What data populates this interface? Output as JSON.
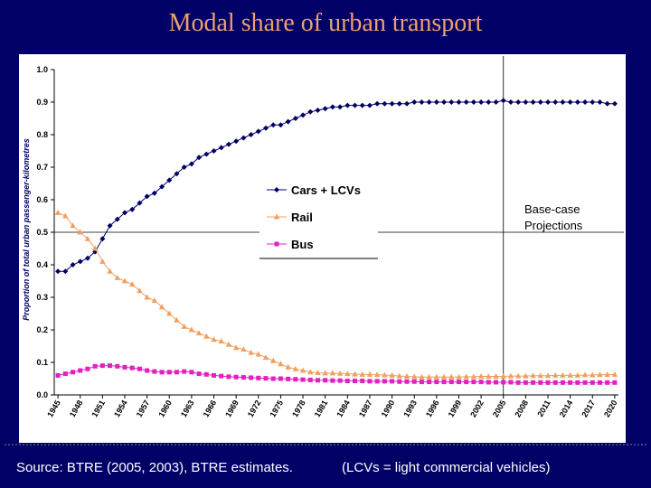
{
  "chart_data": {
    "type": "line",
    "title": "Modal share of urban transport",
    "y_label": "Proportion of total urban passenger-kilometres",
    "x": [
      1945,
      1946,
      1947,
      1948,
      1949,
      1950,
      1951,
      1952,
      1953,
      1954,
      1955,
      1956,
      1957,
      1958,
      1959,
      1960,
      1961,
      1962,
      1963,
      1964,
      1965,
      1966,
      1967,
      1968,
      1969,
      1970,
      1971,
      1972,
      1973,
      1974,
      1975,
      1976,
      1977,
      1978,
      1979,
      1980,
      1981,
      1982,
      1983,
      1984,
      1985,
      1986,
      1987,
      1988,
      1989,
      1990,
      1991,
      1992,
      1993,
      1994,
      1995,
      1996,
      1997,
      1998,
      1999,
      2000,
      2001,
      2002,
      2003,
      2004,
      2005,
      2006,
      2007,
      2008,
      2009,
      2010,
      2011,
      2012,
      2013,
      2014,
      2015,
      2016,
      2017,
      2018,
      2019,
      2020
    ],
    "series": [
      {
        "name": "Cars + LCVs",
        "color": "#000066",
        "marker": "diamond",
        "values": [
          0.38,
          0.38,
          0.4,
          0.41,
          0.42,
          0.44,
          0.48,
          0.52,
          0.54,
          0.56,
          0.57,
          0.59,
          0.61,
          0.62,
          0.64,
          0.66,
          0.68,
          0.7,
          0.71,
          0.73,
          0.74,
          0.75,
          0.76,
          0.77,
          0.78,
          0.79,
          0.8,
          0.81,
          0.82,
          0.83,
          0.83,
          0.84,
          0.85,
          0.86,
          0.87,
          0.875,
          0.88,
          0.885,
          0.885,
          0.89,
          0.89,
          0.89,
          0.89,
          0.895,
          0.895,
          0.895,
          0.895,
          0.895,
          0.9,
          0.9,
          0.9,
          0.9,
          0.9,
          0.9,
          0.9,
          0.9,
          0.9,
          0.9,
          0.9,
          0.9,
          0.905,
          0.9,
          0.9,
          0.9,
          0.9,
          0.9,
          0.9,
          0.9,
          0.9,
          0.9,
          0.9,
          0.9,
          0.9,
          0.9,
          0.895,
          0.895
        ]
      },
      {
        "name": "Rail",
        "color": "#f0a060",
        "marker": "triangle",
        "values": [
          0.56,
          0.55,
          0.52,
          0.5,
          0.48,
          0.45,
          0.41,
          0.38,
          0.36,
          0.35,
          0.34,
          0.32,
          0.3,
          0.29,
          0.27,
          0.25,
          0.23,
          0.21,
          0.2,
          0.19,
          0.18,
          0.17,
          0.165,
          0.155,
          0.145,
          0.14,
          0.13,
          0.125,
          0.115,
          0.105,
          0.095,
          0.085,
          0.08,
          0.075,
          0.07,
          0.068,
          0.067,
          0.067,
          0.066,
          0.065,
          0.064,
          0.063,
          0.063,
          0.062,
          0.061,
          0.06,
          0.058,
          0.057,
          0.056,
          0.055,
          0.055,
          0.055,
          0.055,
          0.055,
          0.055,
          0.056,
          0.056,
          0.057,
          0.057,
          0.057,
          0.057,
          0.058,
          0.058,
          0.058,
          0.059,
          0.059,
          0.059,
          0.06,
          0.06,
          0.06,
          0.06,
          0.061,
          0.061,
          0.062,
          0.062,
          0.063
        ]
      },
      {
        "name": "Bus",
        "color": "#e020c0",
        "marker": "square",
        "values": [
          0.06,
          0.065,
          0.07,
          0.075,
          0.08,
          0.088,
          0.09,
          0.09,
          0.088,
          0.085,
          0.083,
          0.08,
          0.075,
          0.072,
          0.07,
          0.07,
          0.07,
          0.072,
          0.07,
          0.065,
          0.063,
          0.06,
          0.058,
          0.056,
          0.055,
          0.054,
          0.053,
          0.052,
          0.051,
          0.05,
          0.05,
          0.049,
          0.048,
          0.047,
          0.046,
          0.045,
          0.045,
          0.044,
          0.044,
          0.043,
          0.043,
          0.043,
          0.042,
          0.042,
          0.042,
          0.042,
          0.041,
          0.041,
          0.041,
          0.04,
          0.04,
          0.04,
          0.04,
          0.04,
          0.04,
          0.04,
          0.04,
          0.04,
          0.039,
          0.039,
          0.039,
          0.039,
          0.038,
          0.038,
          0.038,
          0.038,
          0.038,
          0.038,
          0.038,
          0.038,
          0.038,
          0.038,
          0.038,
          0.038,
          0.038,
          0.038
        ]
      }
    ],
    "xlim": [
      1944.5,
      2020.5
    ],
    "xticks": [
      1945,
      1948,
      1951,
      1954,
      1957,
      1960,
      1963,
      1966,
      1969,
      1972,
      1975,
      1978,
      1981,
      1984,
      1987,
      1990,
      1993,
      1996,
      1999,
      2002,
      2005,
      2008,
      2011,
      2014,
      2017,
      2020
    ],
    "ylim": [
      0,
      1
    ],
    "yticks": [
      {
        "value": 0,
        "label": "0.0"
      },
      0.1,
      0.2,
      0.3,
      0.4,
      0.5,
      0.6,
      0.7,
      0.8,
      0.9,
      {
        "value": 1,
        "label": "1.0"
      }
    ],
    "reference_y": 0.5,
    "projection_start": 2005,
    "annotation": [
      "Base-case",
      "Projections"
    ],
    "legend": "center",
    "source": "Source: BTRE (2005, 2003), BTRE estimates.",
    "note": "(LCVs = light commercial vehicles)"
  }
}
